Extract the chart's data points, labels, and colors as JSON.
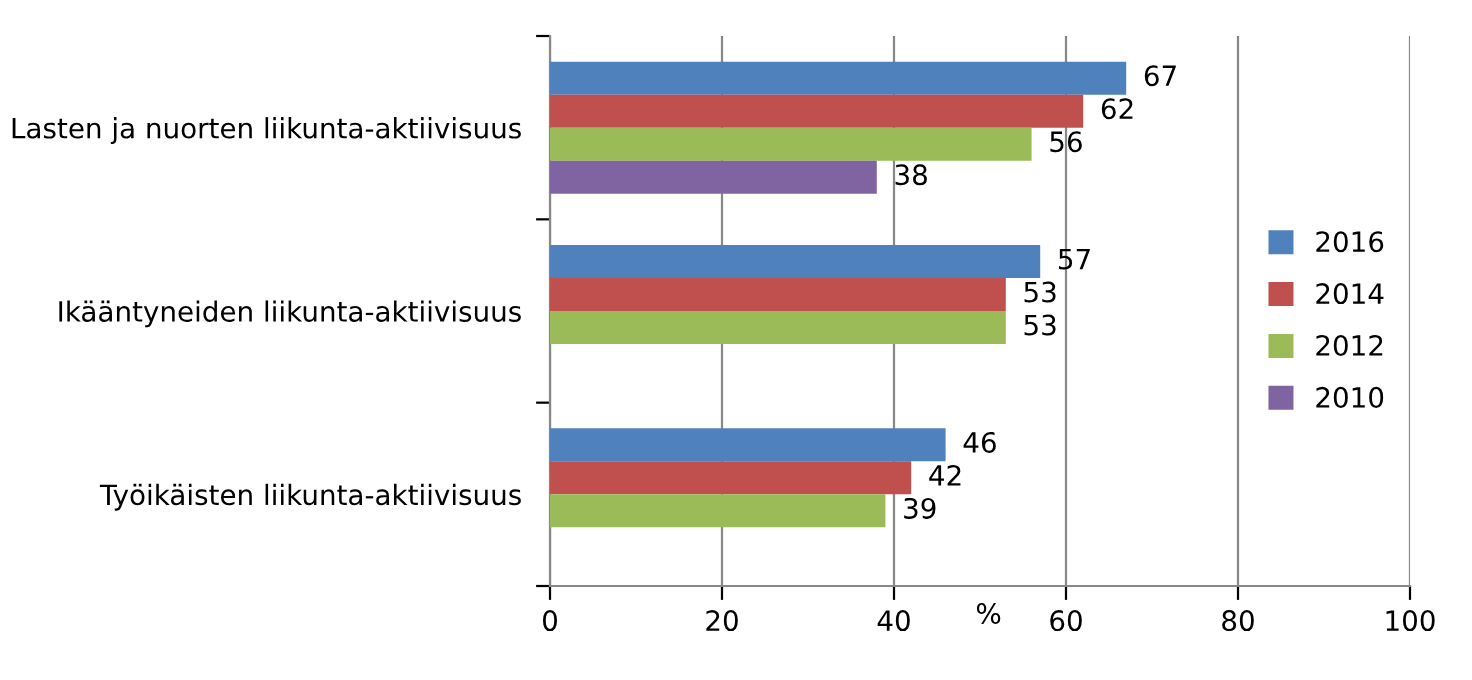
{
  "chart_data": {
    "type": "bar",
    "orientation": "horizontal",
    "categories": [
      "Lasten ja nuorten liikunta-aktiivisuus",
      "Ikääntyneiden liikunta-aktiivisuus",
      "Työikäisten liikunta-aktiivisuus"
    ],
    "series": [
      {
        "name": "2016",
        "color": "#4f81bd",
        "values": [
          67,
          57,
          46
        ]
      },
      {
        "name": "2014",
        "color": "#c0504d",
        "values": [
          62,
          53,
          42
        ]
      },
      {
        "name": "2012",
        "color": "#9bbb59",
        "values": [
          56,
          53,
          39
        ]
      },
      {
        "name": "2010",
        "color": "#8064a2",
        "values": [
          38,
          null,
          null
        ]
      }
    ],
    "xlabel": "%",
    "xlim": [
      0,
      100
    ],
    "xticks": [
      0,
      20,
      40,
      60,
      80,
      100
    ],
    "grid": "x",
    "legend": "right",
    "data_labels": true
  }
}
